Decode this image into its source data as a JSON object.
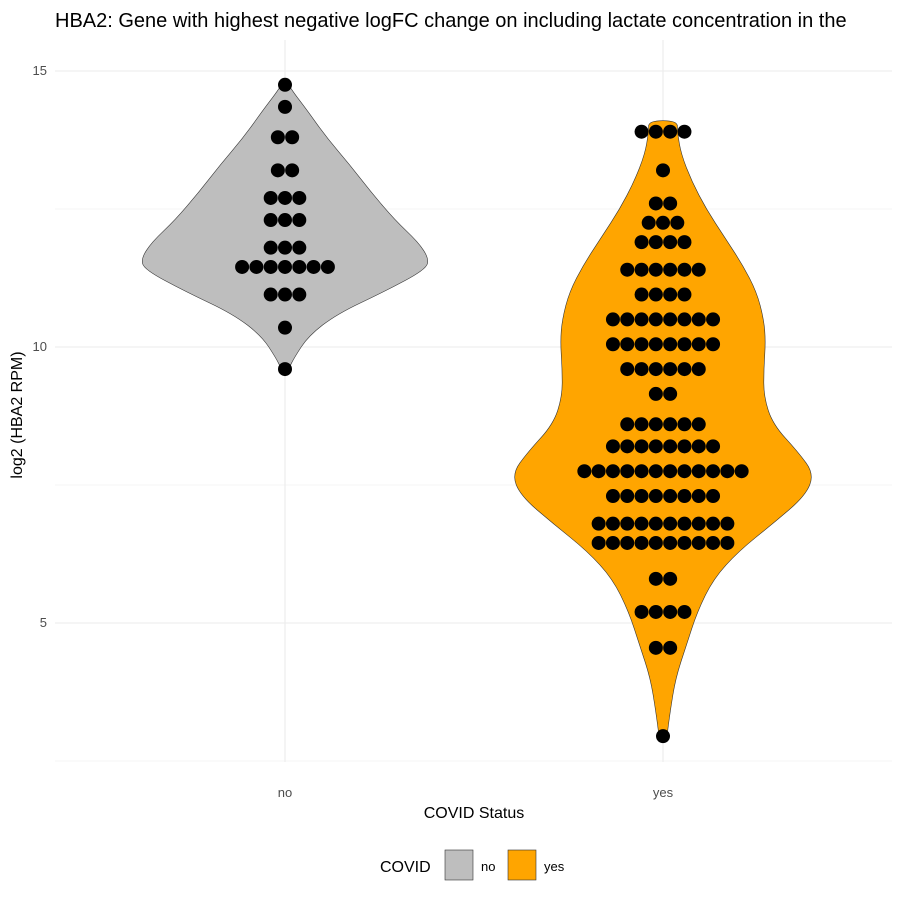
{
  "chart_data": {
    "type": "violin",
    "title": "HBA2: Gene with highest negative logFC change on including lactate concentration in the",
    "xlabel": "COVID Status",
    "ylabel": "log2 (HBA2 RPM)",
    "categories": [
      "no",
      "yes"
    ],
    "y_ticks": [
      5,
      10,
      15
    ],
    "ylim": [
      2.5,
      16
    ],
    "grid": true,
    "legend": {
      "title": "COVID",
      "position": "bottom",
      "entries": [
        {
          "label": "no",
          "color": "#bebebe"
        },
        {
          "label": "yes",
          "color": "#ffa500"
        }
      ]
    },
    "series": [
      {
        "name": "no",
        "color": "#bebebe",
        "violin": [
          [
            9.6,
            0.02
          ],
          [
            9.8,
            0.05
          ],
          [
            10.2,
            0.13
          ],
          [
            10.6,
            0.29
          ],
          [
            11.0,
            0.55
          ],
          [
            11.4,
            0.78
          ],
          [
            11.6,
            0.8
          ],
          [
            11.9,
            0.74
          ],
          [
            12.3,
            0.61
          ],
          [
            12.8,
            0.48
          ],
          [
            13.3,
            0.36
          ],
          [
            13.8,
            0.23
          ],
          [
            14.3,
            0.12
          ],
          [
            14.6,
            0.05
          ],
          [
            14.75,
            0.02
          ]
        ],
        "dots": [
          {
            "y": 14.75,
            "n": 1
          },
          {
            "y": 14.35,
            "n": 1
          },
          {
            "y": 13.8,
            "n": 2
          },
          {
            "y": 13.2,
            "n": 2
          },
          {
            "y": 12.7,
            "n": 3
          },
          {
            "y": 12.3,
            "n": 3
          },
          {
            "y": 11.8,
            "n": 3
          },
          {
            "y": 11.45,
            "n": 7
          },
          {
            "y": 10.95,
            "n": 3
          },
          {
            "y": 10.35,
            "n": 1
          },
          {
            "y": 9.6,
            "n": 1
          }
        ]
      },
      {
        "name": "yes",
        "color": "#ffa500",
        "violin": [
          [
            2.9,
            0.02
          ],
          [
            3.4,
            0.04
          ],
          [
            4.0,
            0.07
          ],
          [
            4.6,
            0.13
          ],
          [
            5.2,
            0.19
          ],
          [
            5.8,
            0.28
          ],
          [
            6.3,
            0.42
          ],
          [
            6.8,
            0.61
          ],
          [
            7.3,
            0.79
          ],
          [
            7.7,
            0.84
          ],
          [
            8.1,
            0.75
          ],
          [
            8.6,
            0.61
          ],
          [
            9.1,
            0.56
          ],
          [
            9.6,
            0.56
          ],
          [
            10.1,
            0.57
          ],
          [
            10.5,
            0.56
          ],
          [
            11.0,
            0.52
          ],
          [
            11.5,
            0.44
          ],
          [
            12.0,
            0.34
          ],
          [
            12.5,
            0.24
          ],
          [
            13.0,
            0.16
          ],
          [
            13.5,
            0.1
          ],
          [
            13.9,
            0.08
          ],
          [
            14.1,
            0.08
          ]
        ],
        "dots": [
          {
            "y": 13.9,
            "n": 4
          },
          {
            "y": 13.2,
            "n": 1
          },
          {
            "y": 12.6,
            "n": 2
          },
          {
            "y": 12.25,
            "n": 3
          },
          {
            "y": 11.9,
            "n": 4
          },
          {
            "y": 11.4,
            "n": 6
          },
          {
            "y": 10.95,
            "n": 4
          },
          {
            "y": 10.5,
            "n": 8
          },
          {
            "y": 10.05,
            "n": 8
          },
          {
            "y": 9.6,
            "n": 6
          },
          {
            "y": 9.15,
            "n": 2
          },
          {
            "y": 8.6,
            "n": 6
          },
          {
            "y": 8.2,
            "n": 8
          },
          {
            "y": 7.75,
            "n": 12
          },
          {
            "y": 7.3,
            "n": 8
          },
          {
            "y": 6.8,
            "n": 10
          },
          {
            "y": 6.45,
            "n": 10
          },
          {
            "y": 5.8,
            "n": 2
          },
          {
            "y": 5.2,
            "n": 4
          },
          {
            "y": 4.55,
            "n": 2
          },
          {
            "y": 2.95,
            "n": 1
          }
        ]
      }
    ]
  }
}
